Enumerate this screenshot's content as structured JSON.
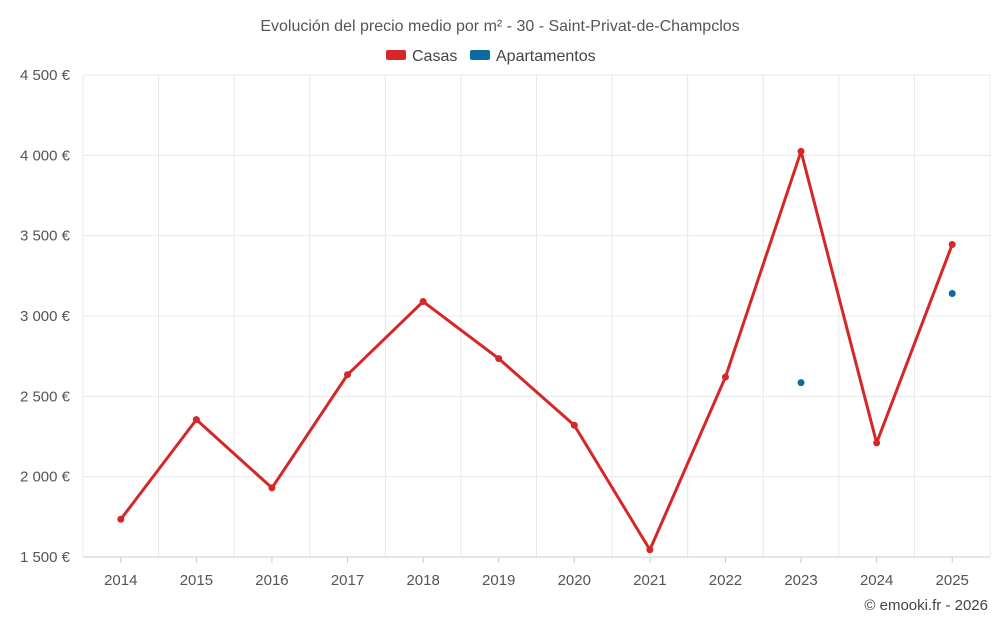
{
  "chart_data": {
    "type": "line",
    "title": "Evolución del precio medio por m² - 30 - Saint-Privat-de-Champclos",
    "categories": [
      "2014",
      "2015",
      "2016",
      "2017",
      "2018",
      "2019",
      "2020",
      "2021",
      "2022",
      "2023",
      "2024",
      "2025"
    ],
    "ylim": [
      1500,
      4500
    ],
    "yticks": [
      1500,
      2000,
      2500,
      3000,
      3500,
      4000,
      4500
    ],
    "ytick_labels": [
      "1 500 €",
      "2 000 €",
      "2 500 €",
      "3 000 €",
      "3 500 €",
      "4 000 €",
      "4 500 €"
    ],
    "grid": true,
    "legend_position": "top-center",
    "series": [
      {
        "name": "Casas",
        "color": "#d62728",
        "values": [
          1735,
          2355,
          1930,
          2635,
          3090,
          2735,
          2320,
          1545,
          2620,
          4025,
          2210,
          3445
        ]
      },
      {
        "name": "Apartamentos",
        "color": "#0a6aa1",
        "values": [
          null,
          null,
          null,
          null,
          null,
          null,
          null,
          null,
          null,
          2585,
          null,
          3140
        ]
      }
    ]
  },
  "credit": "© emooki.fr - 2026"
}
